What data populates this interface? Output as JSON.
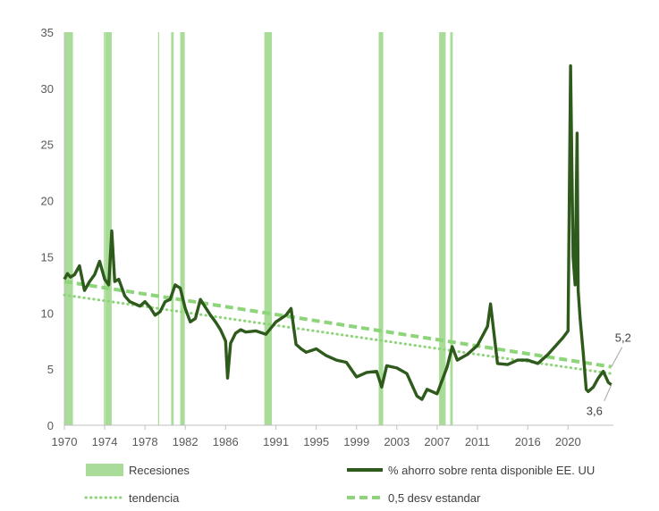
{
  "chart_data": {
    "type": "line",
    "title": "",
    "xlabel": "",
    "ylabel": "",
    "xlim": [
      1970,
      2024.5
    ],
    "ylim": [
      0,
      35
    ],
    "y_ticks": [
      0,
      5,
      10,
      15,
      20,
      25,
      30,
      35
    ],
    "y_tick_labels": [
      "0",
      "5",
      "10",
      "15",
      "20",
      "25",
      "30",
      "35"
    ],
    "x_ticks": [
      1970,
      1974,
      1978,
      1982,
      1986,
      1991,
      1995,
      1999,
      2003,
      2007,
      2011,
      2016,
      2020
    ],
    "x_tick_labels": [
      "1970",
      "1974",
      "1978",
      "1982",
      "1986",
      "1991",
      "1995",
      "1999",
      "2003",
      "2007",
      "2011",
      "2016",
      "2020"
    ],
    "grid": false,
    "legend_position": "bottom",
    "colors": {
      "recession": "#a9dc98",
      "savings": "#2e5a1c",
      "trend": "#8ed47a",
      "sd": "#8ed47a",
      "axis": "#bfbfbf"
    },
    "legend": {
      "recessions": "Recesiones",
      "savings": "% ahorro sobre renta disponible EE. UU",
      "trend": "tendencia",
      "sd": "0,5 desv estandar"
    },
    "recessions": [
      [
        1970.0,
        1970.85
      ],
      [
        1973.92,
        1973.96
      ],
      [
        1974.05,
        1974.7
      ],
      [
        1979.3,
        1979.35
      ],
      [
        1980.6,
        1980.85
      ],
      [
        1981.5,
        1981.95
      ],
      [
        1989.85,
        1990.6
      ],
      [
        2001.2,
        2001.65
      ],
      [
        2007.2,
        2007.85
      ],
      [
        2008.3,
        2008.55
      ]
    ],
    "series": [
      {
        "name": "% ahorro sobre renta disponible EE. UU",
        "style": "solid",
        "x": [
          1970,
          1970.3,
          1970.6,
          1971,
          1971.5,
          1972,
          1972.5,
          1973,
          1973.5,
          1974,
          1974.4,
          1974.7,
          1975,
          1975.4,
          1976,
          1976.5,
          1977,
          1977.5,
          1978,
          1978.5,
          1979,
          1979.5,
          1980,
          1980.5,
          1981,
          1981.5,
          1982,
          1982.5,
          1983,
          1983.5,
          1984,
          1984.5,
          1985,
          1985.5,
          1986,
          1986.2,
          1986.5,
          1987,
          1987.5,
          1988,
          1989,
          1990,
          1991,
          1992,
          1992.5,
          1993,
          1993.5,
          1994,
          1995,
          1996,
          1997,
          1998,
          1999,
          2000,
          2001,
          2001.5,
          2002,
          2003,
          2004,
          2005,
          2005.5,
          2006,
          2007,
          2008,
          2008.5,
          2009,
          2010,
          2011,
          2012,
          2012.3,
          2013,
          2014,
          2015,
          2016,
          2017,
          2018,
          2019,
          2019.5,
          2020,
          2020.25,
          2020.5,
          2020.7,
          2020.9,
          2021,
          2021.2,
          2021.5,
          2021.8,
          2022,
          2022.5,
          2023,
          2023.5,
          2024,
          2024.3
        ],
        "y": [
          13,
          13.5,
          13.2,
          13.4,
          14.2,
          12,
          12.8,
          13.4,
          14.6,
          13,
          12.5,
          17.3,
          12.8,
          13,
          11.5,
          11,
          10.8,
          10.6,
          11,
          10.5,
          9.8,
          10.1,
          11,
          11.2,
          12.5,
          12.2,
          10.4,
          9.2,
          9.5,
          11.2,
          10.5,
          9.8,
          9.2,
          8.5,
          7.5,
          4.2,
          7.3,
          8.2,
          8.5,
          8.3,
          8.4,
          8.1,
          9.2,
          9.8,
          10.4,
          7.2,
          6.8,
          6.5,
          6.8,
          6.2,
          5.8,
          5.6,
          4.3,
          4.7,
          4.8,
          3.4,
          5.3,
          5.1,
          4.6,
          2.6,
          2.3,
          3.2,
          2.8,
          5.2,
          7.0,
          5.8,
          6.3,
          7.1,
          8.8,
          10.8,
          5.5,
          5.4,
          5.8,
          5.8,
          5.5,
          6.3,
          7.3,
          7.8,
          8.4,
          32,
          15,
          12.5,
          26,
          12,
          9.5,
          6.5,
          3.2,
          3.0,
          3.4,
          4.2,
          4.8,
          3.8,
          3.6
        ]
      },
      {
        "name": "tendencia",
        "style": "dotted",
        "x": [
          1970,
          2024.3
        ],
        "y": [
          11.6,
          4.6
        ]
      },
      {
        "name": "0,5 desv estandar",
        "style": "dashed",
        "x": [
          1970,
          2024.3
        ],
        "y": [
          12.8,
          5.2
        ]
      }
    ],
    "annotations": [
      {
        "label": "5,2",
        "x": 2024.3,
        "y": 5.2
      },
      {
        "label": "3,6",
        "x": 2024.3,
        "y": 3.6
      }
    ]
  }
}
